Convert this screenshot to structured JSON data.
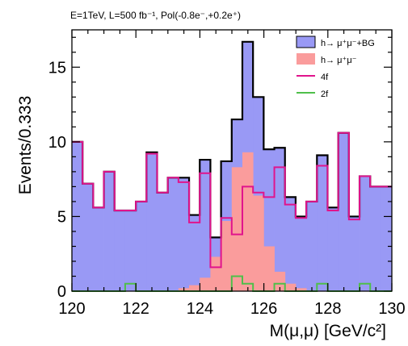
{
  "chart_data": {
    "type": "histogram",
    "title": "E=1TeV, L=500 fb⁻¹, Pol(-0.8e⁻,+0.2e⁺)",
    "xlabel": "M(μ,μ) [GeV/c²]",
    "ylabel": "Events/0.333",
    "xlim": [
      120,
      130
    ],
    "ylim": [
      0,
      17.5
    ],
    "bin_width": 0.333,
    "x_ticks": [
      120,
      122,
      124,
      126,
      128,
      130
    ],
    "y_ticks": [
      0,
      5,
      10,
      15
    ],
    "legend_position": "top-right",
    "series": [
      {
        "name": "h→ μ⁺μ⁻+BG",
        "style": "filled-outline",
        "fill": "#9999f5",
        "color": "#000000",
        "values": [
          10.0,
          7.2,
          5.6,
          8.0,
          5.4,
          5.4,
          6.0,
          9.3,
          6.6,
          7.6,
          7.6,
          5.1,
          8.8,
          3.6,
          8.7,
          11.5,
          16.7,
          13.0,
          9.5,
          9.6,
          6.3,
          5.0,
          6.0,
          9.1,
          5.6,
          10.6,
          5.0,
          7.7,
          7.0,
          7.0
        ]
      },
      {
        "name": "h→ μ⁺μ⁻",
        "style": "filled",
        "fill": "#fa9c9c",
        "values": [
          0,
          0,
          0,
          0,
          0,
          0,
          0,
          0,
          0,
          0,
          0.2,
          0.4,
          0.9,
          2.3,
          4.7,
          8.3,
          9.3,
          6.4,
          3.0,
          1.3,
          0.5,
          0.2,
          0,
          0,
          0,
          0,
          0,
          0,
          0,
          0
        ]
      },
      {
        "name": "4f",
        "style": "line",
        "color": "#e0148c",
        "values": [
          10.0,
          7.2,
          5.6,
          8.0,
          5.4,
          5.4,
          6.0,
          9.2,
          6.6,
          7.6,
          7.3,
          4.6,
          7.9,
          1.6,
          4.9,
          3.8,
          7.0,
          6.6,
          6.3,
          8.3,
          5.8,
          4.9,
          6.0,
          8.4,
          5.4,
          10.6,
          4.8,
          7.7,
          7.0,
          7.0
        ]
      },
      {
        "name": "2f",
        "style": "line",
        "color": "#4fbf4a",
        "values": [
          0,
          0,
          0,
          0,
          0,
          0.5,
          0,
          0,
          0,
          0,
          0,
          0,
          0,
          0,
          0,
          1.0,
          0.5,
          0,
          0,
          0.5,
          0,
          0,
          0,
          0.5,
          0,
          0,
          0,
          0.5,
          0,
          0
        ]
      }
    ]
  }
}
